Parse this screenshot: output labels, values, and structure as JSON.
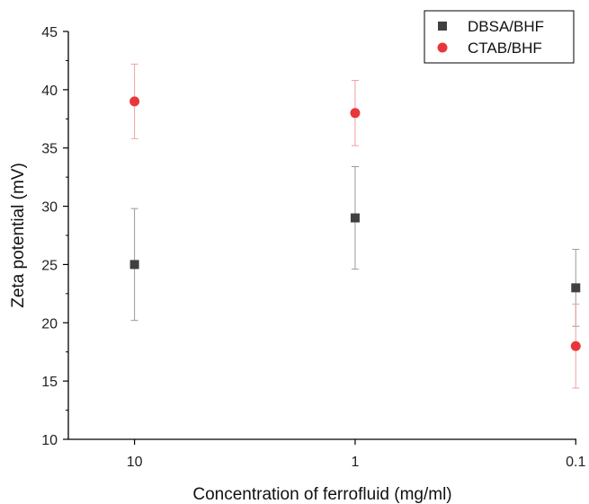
{
  "chart_data": {
    "type": "scatter",
    "title": "",
    "xlabel": "Concentration of ferrofluid (mg/ml)",
    "ylabel": "Zeta potential (mV)",
    "x_scale": "log",
    "x_reversed": true,
    "x_ticks": [
      10,
      1,
      0.1
    ],
    "x_tick_labels": [
      "10",
      "1",
      "0.1"
    ],
    "ylim": [
      10,
      45
    ],
    "y_ticks": [
      10,
      15,
      20,
      25,
      30,
      35,
      40,
      45
    ],
    "y_tick_labels": [
      "10",
      "15",
      "20",
      "25",
      "30",
      "35",
      "40",
      "45"
    ],
    "grid": false,
    "legend_position": "top-right",
    "series": [
      {
        "name": "DBSA/BHF",
        "marker": "square",
        "color": "#404040",
        "error_color": "#9a9a9a",
        "x": [
          10,
          1,
          0.1
        ],
        "y": [
          25,
          29,
          23
        ],
        "error": [
          4.8,
          4.4,
          3.3
        ]
      },
      {
        "name": "CTAB/BHF",
        "marker": "circle",
        "color": "#e8373c",
        "error_color": "#f0a0a0",
        "x": [
          10,
          1,
          0.1
        ],
        "y": [
          39,
          38,
          18
        ],
        "error": [
          3.2,
          2.8,
          3.6
        ]
      }
    ]
  }
}
